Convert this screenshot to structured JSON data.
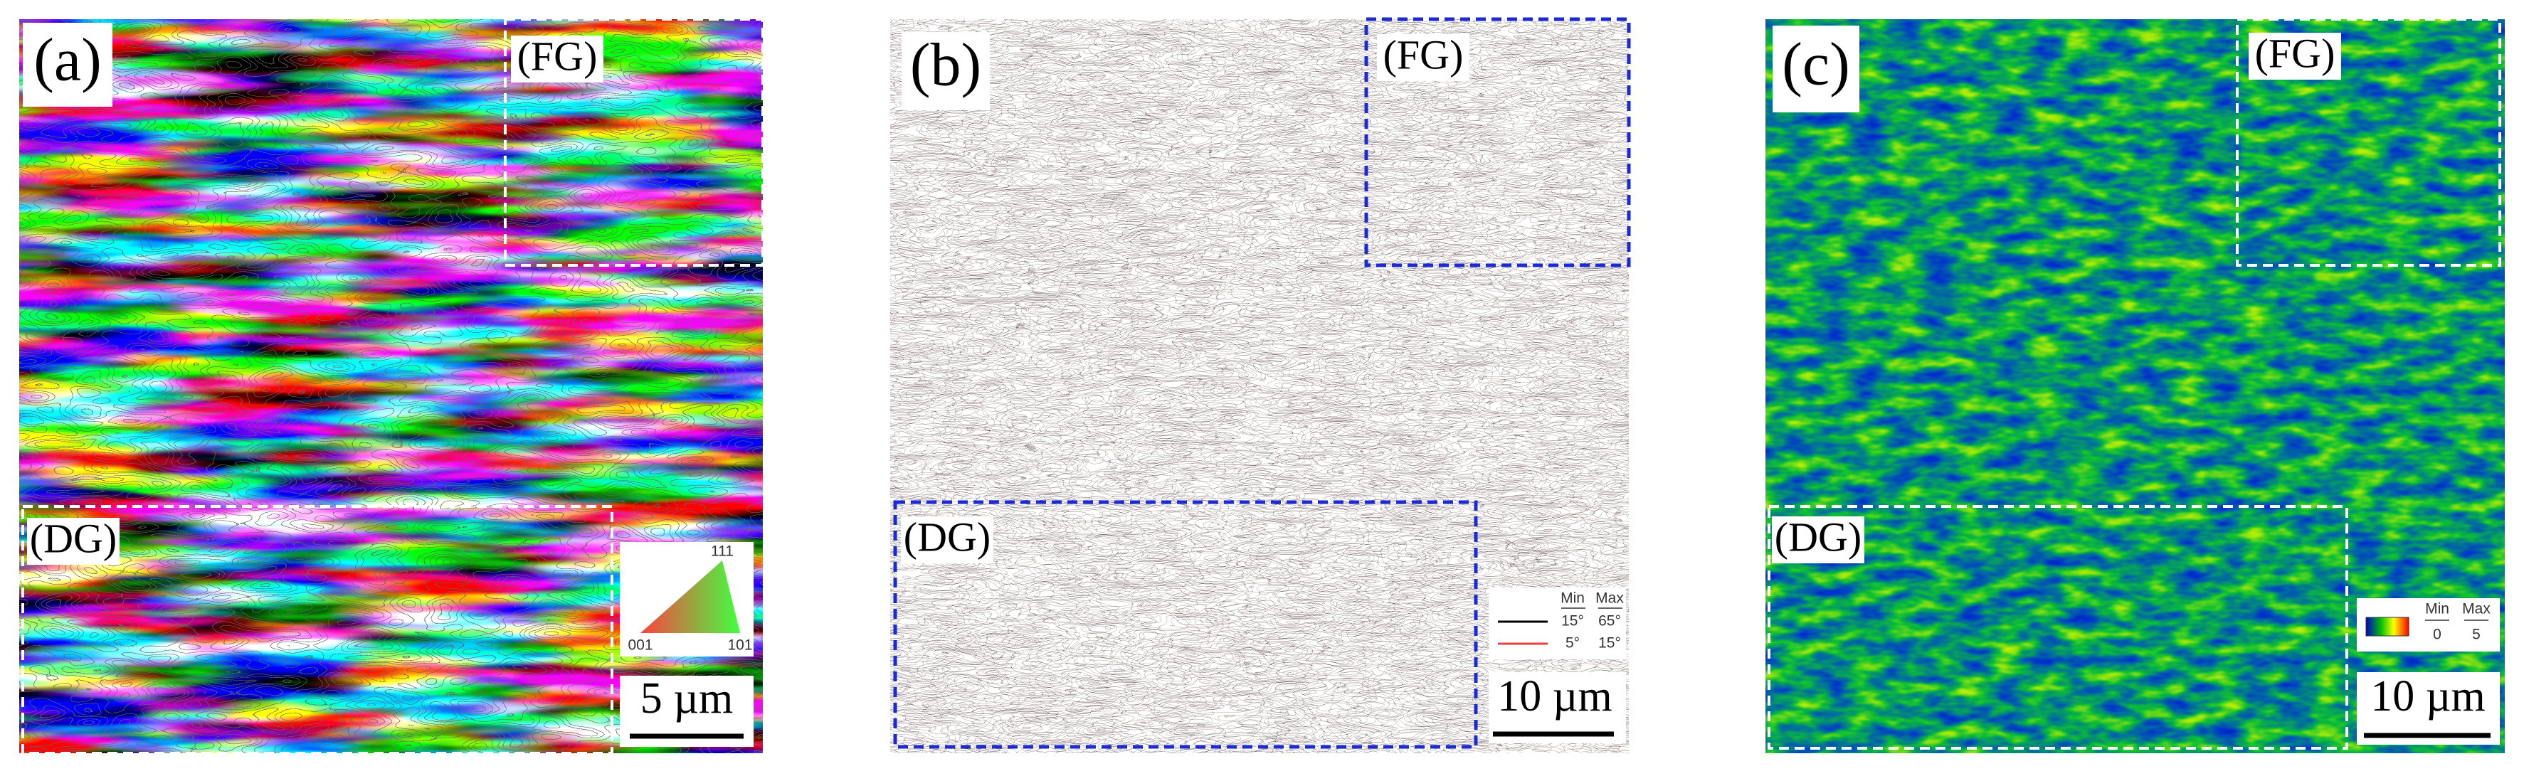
{
  "panels": [
    {
      "label": "(a)",
      "fine_grain_label": "(FG)",
      "deformed_grain_label": "(DG)",
      "scale_bar": "5 µm",
      "legend": {
        "top": "111",
        "bottom_left": "001",
        "bottom_right": "101"
      }
    },
    {
      "label": "(b)",
      "fine_grain_label": "(FG)",
      "deformed_grain_label": "(DG)",
      "scale_bar": "10 µm",
      "legend": {
        "min_header": "Min",
        "max_header": "Max",
        "rows": [
          [
            "15°",
            "65°"
          ],
          [
            "5°",
            "15°"
          ]
        ]
      }
    },
    {
      "label": "(c)",
      "fine_grain_label": "(FG)",
      "deformed_grain_label": "(DG)",
      "scale_bar": "10 µm",
      "legend": {
        "min_header": "Min",
        "max_header": "Max",
        "min": "0",
        "max": "5"
      }
    }
  ]
}
